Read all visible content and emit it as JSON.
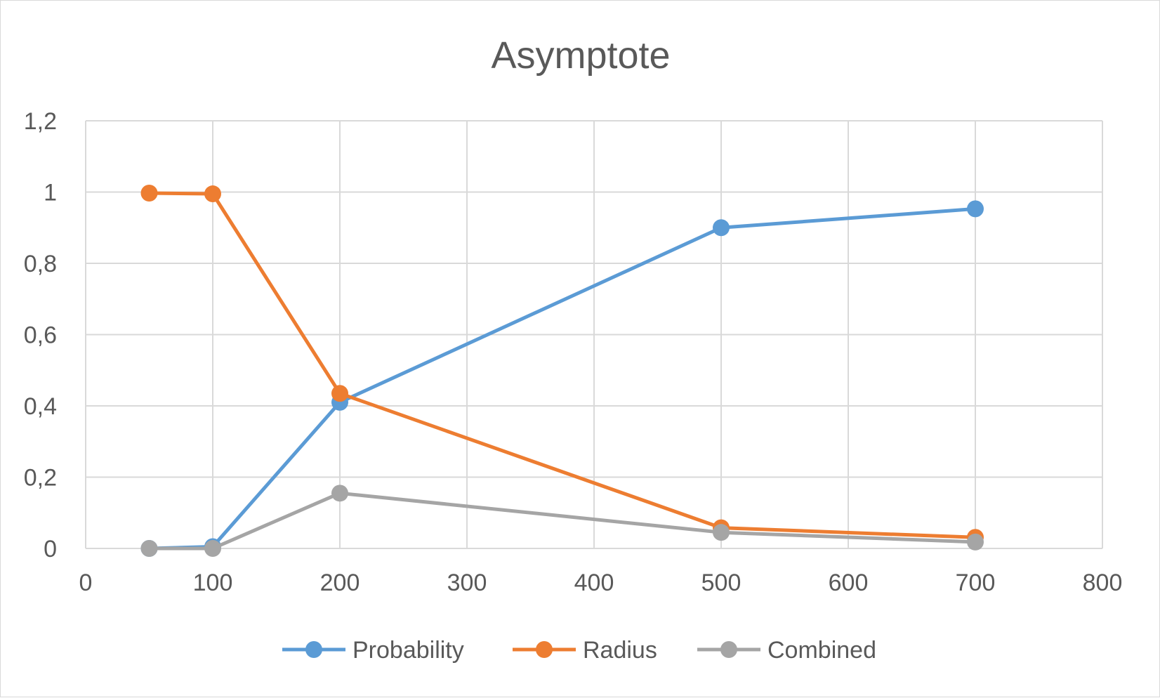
{
  "chart_data": {
    "type": "scatter",
    "title": "Asymptote",
    "xlabel": "",
    "ylabel": "",
    "xlim": [
      0,
      800
    ],
    "ylim": [
      0,
      1.2
    ],
    "x_ticks": [
      "0",
      "100",
      "200",
      "300",
      "400",
      "500",
      "600",
      "700",
      "800"
    ],
    "y_ticks": [
      "0",
      "0,2",
      "0,4",
      "0,6",
      "0,8",
      "1",
      "1,2"
    ],
    "grid": "both",
    "legend_position": "bottom",
    "markers": "circle",
    "lines": "straight",
    "series": [
      {
        "name": "Probability",
        "color": "#5b9bd5",
        "x": [
          50,
          100,
          200,
          500,
          700
        ],
        "y": [
          0.0,
          0.005,
          0.41,
          0.9,
          0.953
        ]
      },
      {
        "name": "Radius",
        "color": "#ed7d31",
        "x": [
          50,
          100,
          200,
          500,
          700
        ],
        "y": [
          0.997,
          0.995,
          0.435,
          0.058,
          0.031
        ]
      },
      {
        "name": "Combined",
        "color": "#a5a5a5",
        "x": [
          50,
          100,
          200,
          500,
          700
        ],
        "y": [
          0.0,
          0.0,
          0.155,
          0.045,
          0.018
        ]
      }
    ]
  }
}
